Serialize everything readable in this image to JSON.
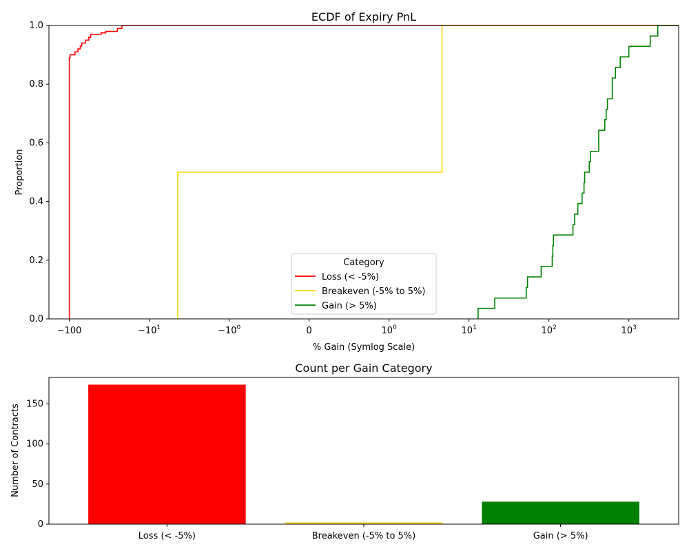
{
  "chart_data": [
    {
      "type": "line",
      "subtype": "ecdf-step",
      "title": "ECDF of Expiry PnL",
      "xlabel": "% Gain (Symlog Scale)",
      "ylabel": "Proportion",
      "xscale": "symlog",
      "linthresh": 1,
      "xlim": [
        -180,
        4200
      ],
      "ylim": [
        0,
        1
      ],
      "x_ticks": [
        {
          "value": -100,
          "base": "−100",
          "exp": ""
        },
        {
          "value": -10,
          "base": "−10",
          "exp": "1"
        },
        {
          "value": -1,
          "base": "−10",
          "exp": "0"
        },
        {
          "value": 0,
          "base": "0",
          "exp": ""
        },
        {
          "value": 1,
          "base": "10",
          "exp": "0"
        },
        {
          "value": 10,
          "base": "10",
          "exp": "1"
        },
        {
          "value": 100,
          "base": "10",
          "exp": "2"
        },
        {
          "value": 1000,
          "base": "10",
          "exp": "3"
        }
      ],
      "y_ticks": [
        "0.0",
        "0.2",
        "0.4",
        "0.6",
        "0.8",
        "1.0"
      ],
      "grid": false,
      "legend": {
        "title": "Category",
        "placement": "lower-center"
      },
      "series": [
        {
          "name": "Loss (< -5%)",
          "color": "#ff0000",
          "steps": [
            [
              -100,
              0.89
            ],
            [
              -98,
              0.9
            ],
            [
              -85,
              0.91
            ],
            [
              -78,
              0.92
            ],
            [
              -73,
              0.93
            ],
            [
              -70,
              0.94
            ],
            [
              -63,
              0.95
            ],
            [
              -57,
              0.96
            ],
            [
              -54,
              0.97
            ],
            [
              -40,
              0.975
            ],
            [
              -35,
              0.98
            ],
            [
              -25,
              0.99
            ],
            [
              -22,
              1.0
            ]
          ]
        },
        {
          "name": "Breakeven (-5% to 5%)",
          "color": "#ffd700",
          "steps": [
            [
              -4.4,
              0.5
            ],
            [
              4.6,
              1.0
            ]
          ]
        },
        {
          "name": "Gain (> 5%)",
          "color": "#008000",
          "steps": [
            [
              13,
              0.036
            ],
            [
              21,
              0.071
            ],
            [
              52,
              0.107
            ],
            [
              54,
              0.143
            ],
            [
              80,
              0.179
            ],
            [
              110,
              0.214
            ],
            [
              112,
              0.25
            ],
            [
              114,
              0.286
            ],
            [
              200,
              0.321
            ],
            [
              210,
              0.357
            ],
            [
              230,
              0.393
            ],
            [
              260,
              0.429
            ],
            [
              275,
              0.464
            ],
            [
              280,
              0.5
            ],
            [
              320,
              0.536
            ],
            [
              330,
              0.571
            ],
            [
              420,
              0.643
            ],
            [
              500,
              0.679
            ],
            [
              520,
              0.714
            ],
            [
              540,
              0.75
            ],
            [
              620,
              0.821
            ],
            [
              680,
              0.857
            ],
            [
              780,
              0.893
            ],
            [
              1000,
              0.929
            ],
            [
              1850,
              0.964
            ],
            [
              2300,
              1.0
            ]
          ]
        }
      ]
    },
    {
      "type": "bar",
      "title": "Count per Gain Category",
      "xlabel": "",
      "ylabel": "Number of Contracts",
      "categories": [
        "Loss (< -5%)",
        "Breakeven (-5% to 5%)",
        "Gain (> 5%)"
      ],
      "values": [
        174,
        2,
        28
      ],
      "colors": [
        "#ff0000",
        "#ffd700",
        "#008000"
      ],
      "ylim": [
        0,
        183
      ],
      "y_ticks": [
        0,
        50,
        100,
        150
      ],
      "grid": false
    }
  ]
}
